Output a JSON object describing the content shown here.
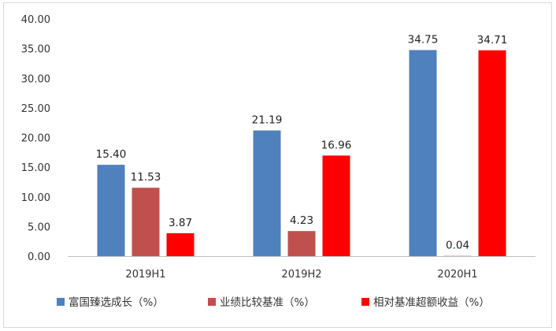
{
  "chart_data": {
    "type": "bar",
    "categories": [
      "2019H1",
      "2019H2",
      "2020H1"
    ],
    "series": [
      {
        "name": "富国臻选成长（%）",
        "color": "#4f81bd",
        "values": [
          15.4,
          21.19,
          34.75
        ],
        "labels": [
          "15.40",
          "21.19",
          "34.75"
        ]
      },
      {
        "name": "业绩比较基准（%）",
        "color": "#c0504d",
        "values": [
          11.53,
          4.23,
          0.04
        ],
        "labels": [
          "11.53",
          "4.23",
          "0.04"
        ]
      },
      {
        "name": "相对基准超额收益（%）",
        "color": "#ff0000",
        "values": [
          3.87,
          16.96,
          34.71
        ],
        "labels": [
          "3.87",
          "16.96",
          "34.71"
        ]
      }
    ],
    "yticks": [
      "0.00",
      "5.00",
      "10.00",
      "15.00",
      "20.00",
      "25.00",
      "30.00",
      "35.00",
      "40.00"
    ],
    "ylim": [
      0,
      40
    ],
    "grid": false,
    "legend": "bottom"
  }
}
